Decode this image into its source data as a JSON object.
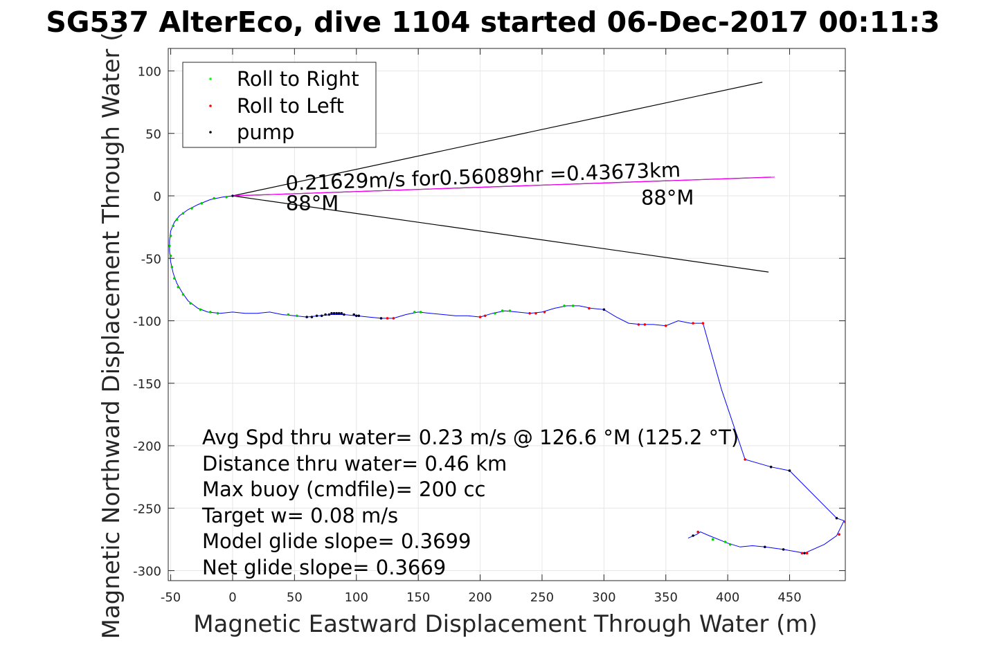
{
  "chart_data": {
    "type": "line",
    "title": "SG537 AlterEco, dive 1104 started 06-Dec-2017 00:11:3",
    "xlabel": "Magnetic Eastward Displacement Through Water (m)",
    "ylabel": "Magnetic Northward Displacement Through Water (",
    "xlim": [
      -52,
      495
    ],
    "ylim": [
      -308,
      118
    ],
    "xticks": [
      -50,
      0,
      50,
      100,
      150,
      200,
      250,
      300,
      350,
      400,
      450
    ],
    "yticks": [
      100,
      50,
      0,
      -50,
      -100,
      -150,
      -200,
      -250,
      -300
    ],
    "grid": true,
    "legend_position": "top-left",
    "legend": [
      {
        "label": "Roll to Right",
        "color": "#00ff00"
      },
      {
        "label": "Roll to Left",
        "color": "#ff0000"
      },
      {
        "label": "pump",
        "color": "#000000"
      }
    ],
    "series": [
      {
        "type": "track",
        "color": "#0000ff",
        "points": [
          [
            0,
            0
          ],
          [
            -8,
            -1
          ],
          [
            -18,
            -3
          ],
          [
            -28,
            -7
          ],
          [
            -36,
            -11
          ],
          [
            -43,
            -16
          ],
          [
            -47,
            -21
          ],
          [
            -50,
            -28
          ],
          [
            -51,
            -36
          ],
          [
            -51,
            -44
          ],
          [
            -50,
            -53
          ],
          [
            -48,
            -62
          ],
          [
            -45,
            -70
          ],
          [
            -41,
            -77
          ],
          [
            -36,
            -84
          ],
          [
            -28,
            -90
          ],
          [
            -20,
            -93
          ],
          [
            -10,
            -94
          ],
          [
            0,
            -93
          ],
          [
            10,
            -94
          ],
          [
            20,
            -94
          ],
          [
            30,
            -93
          ],
          [
            40,
            -95
          ],
          [
            50,
            -96
          ],
          [
            60,
            -97
          ],
          [
            70,
            -96
          ],
          [
            80,
            -95
          ],
          [
            90,
            -95
          ],
          [
            100,
            -96
          ],
          [
            110,
            -97
          ],
          [
            120,
            -98
          ],
          [
            130,
            -98
          ],
          [
            140,
            -95
          ],
          [
            150,
            -93
          ],
          [
            160,
            -94
          ],
          [
            170,
            -95
          ],
          [
            180,
            -96
          ],
          [
            190,
            -96
          ],
          [
            200,
            -97
          ],
          [
            210,
            -94
          ],
          [
            220,
            -92
          ],
          [
            230,
            -93
          ],
          [
            240,
            -94
          ],
          [
            250,
            -93
          ],
          [
            260,
            -90
          ],
          [
            270,
            -88
          ],
          [
            280,
            -88
          ],
          [
            290,
            -90
          ],
          [
            300,
            -91
          ],
          [
            310,
            -97
          ],
          [
            320,
            -102
          ],
          [
            330,
            -103
          ],
          [
            340,
            -103
          ],
          [
            350,
            -104
          ],
          [
            360,
            -100
          ],
          [
            370,
            -102
          ],
          [
            380,
            -102
          ],
          [
            395,
            -155
          ],
          [
            414,
            -211
          ],
          [
            435,
            -217
          ],
          [
            450,
            -220
          ],
          [
            488,
            -258
          ],
          [
            494,
            -260
          ],
          [
            488,
            -272
          ],
          [
            478,
            -279
          ],
          [
            462,
            -286
          ],
          [
            445,
            -283
          ],
          [
            430,
            -281
          ],
          [
            420,
            -280
          ],
          [
            410,
            -281
          ],
          [
            400,
            -278
          ],
          [
            395,
            -276
          ],
          [
            385,
            -272
          ],
          [
            378,
            -269
          ],
          [
            375,
            -271
          ],
          [
            368,
            -274
          ]
        ]
      }
    ],
    "markers": {
      "roll_right": [
        [
          -5,
          -1
        ],
        [
          -15,
          -2
        ],
        [
          -25,
          -6
        ],
        [
          -33,
          -10
        ],
        [
          -40,
          -14
        ],
        [
          -45,
          -19
        ],
        [
          -48,
          -24
        ],
        [
          -50,
          -32
        ],
        [
          -51,
          -40
        ],
        [
          -50,
          -48
        ],
        [
          -49,
          -57
        ],
        [
          -47,
          -66
        ],
        [
          -44,
          -73
        ],
        [
          -40,
          -79
        ],
        [
          -34,
          -86
        ],
        [
          -26,
          -91
        ],
        [
          -18,
          -93
        ],
        [
          -12,
          -94
        ],
        [
          45,
          -95
        ],
        [
          52,
          -96
        ],
        [
          147,
          -93
        ],
        [
          152,
          -93
        ],
        [
          212,
          -94
        ],
        [
          218,
          -92
        ],
        [
          224,
          -92
        ],
        [
          268,
          -88
        ],
        [
          275,
          -88
        ],
        [
          388,
          -275
        ],
        [
          398,
          -277
        ],
        [
          402,
          -279
        ]
      ],
      "roll_left": [
        [
          125,
          -98
        ],
        [
          130,
          -98
        ],
        [
          200,
          -97
        ],
        [
          204,
          -96
        ],
        [
          240,
          -94
        ],
        [
          245,
          -94
        ],
        [
          252,
          -93
        ],
        [
          288,
          -90
        ],
        [
          328,
          -103
        ],
        [
          333,
          -103
        ],
        [
          350,
          -104
        ],
        [
          372,
          -102
        ],
        [
          380,
          -102
        ],
        [
          414,
          -211
        ],
        [
          490,
          -271
        ],
        [
          495,
          -261
        ],
        [
          460,
          -286
        ],
        [
          464,
          -286
        ],
        [
          376,
          -269
        ]
      ],
      "pump": [
        [
          0,
          0
        ],
        [
          60,
          -97
        ],
        [
          64,
          -97
        ],
        [
          68,
          -96
        ],
        [
          72,
          -96
        ],
        [
          75,
          -95
        ],
        [
          78,
          -95
        ],
        [
          80,
          -94
        ],
        [
          82,
          -94
        ],
        [
          84,
          -94
        ],
        [
          86,
          -94
        ],
        [
          88,
          -94
        ],
        [
          90,
          -95
        ],
        [
          98,
          -95
        ],
        [
          100,
          -96
        ],
        [
          102,
          -96
        ],
        [
          120,
          -98
        ],
        [
          300,
          -91
        ],
        [
          435,
          -217
        ],
        [
          450,
          -220
        ],
        [
          488,
          -258
        ],
        [
          445,
          -283
        ],
        [
          430,
          -281
        ],
        [
          462,
          -286
        ],
        [
          372,
          -272
        ]
      ]
    },
    "lines": [
      {
        "color": "#000000",
        "from": [
          0,
          0
        ],
        "to": [
          428,
          91
        ]
      },
      {
        "color": "#000000",
        "from": [
          0,
          0
        ],
        "to": [
          433,
          -61
        ]
      },
      {
        "color": "#000000",
        "from": [
          0,
          0
        ],
        "to": [
          435,
          15
        ]
      },
      {
        "color": "#ff00ff",
        "from": [
          0,
          0
        ],
        "to": [
          438,
          15
        ]
      }
    ],
    "annotations": [
      {
        "text": "0.21629m/s for0.56089hr =0.43673km",
        "x": 43,
        "y": 0
      },
      {
        "text": "88°M",
        "x": 43,
        "y": -9
      },
      {
        "text": "88°M",
        "x": 330,
        "y": -2
      }
    ],
    "stats": [
      "Avg Spd thru water=  0.23 m/s @ 126.6 °M (125.2 °T)",
      "Distance thru water=  0.46 km",
      "Max buoy (cmdfile)= 200 cc",
      "Target w= 0.08 m/s",
      "Model glide slope= 0.3699",
      "Net glide slope= 0.3669"
    ]
  }
}
